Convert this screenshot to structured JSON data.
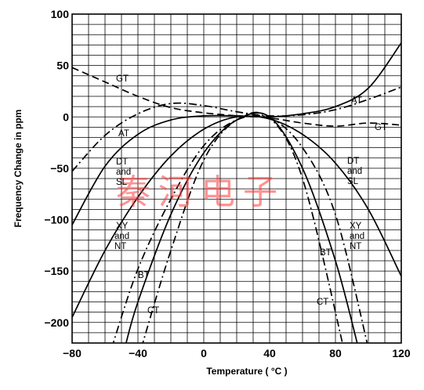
{
  "chart_data": {
    "type": "line",
    "xlabel": "Temperature ( °C )",
    "ylabel": "Frequency Change in ppm",
    "xlim": [
      -80,
      120
    ],
    "ylim": [
      -220,
      100
    ],
    "x_ticks": [
      "−80",
      "−40",
      "0",
      "40",
      "80",
      "120"
    ],
    "y_ticks": [
      "100",
      "50",
      "0",
      "−50",
      "−100",
      "−150",
      "−200"
    ],
    "grid": true,
    "watermark": "秦河电子",
    "series": [
      {
        "name": "AT",
        "style": "solid",
        "x": [
          -80,
          -60,
          -40,
          -20,
          0,
          20,
          40,
          60,
          80,
          100,
          120
        ],
        "y": [
          -105,
          -48,
          -17,
          -3,
          1,
          1,
          0,
          3,
          10,
          28,
          72
        ]
      },
      {
        "name": "AT",
        "style": "dashdot",
        "x": [
          -80,
          -60,
          -40,
          -20,
          0,
          20,
          40,
          60,
          80,
          100,
          120
        ],
        "y": [
          -53,
          -18,
          3,
          13,
          11,
          5,
          1,
          2,
          7,
          17,
          29
        ]
      },
      {
        "name": "GT",
        "style": "dashed",
        "x": [
          -80,
          -60,
          -40,
          -20,
          0,
          20,
          40,
          60,
          80,
          100,
          120
        ],
        "y": [
          48,
          34,
          20,
          9,
          4,
          1,
          -1,
          -6,
          -9,
          -6,
          -8
        ]
      },
      {
        "name": "DT and SL",
        "style": "solid",
        "x": [
          -80,
          -60,
          -40,
          -20,
          0,
          20,
          40,
          60,
          80,
          100,
          120
        ],
        "y": [
          -195,
          -130,
          -78,
          -38,
          -12,
          0,
          -2,
          -17,
          -45,
          -90,
          -155
        ]
      },
      {
        "name": "XY and NT",
        "style": "dashdot",
        "x": [
          -56,
          -40,
          -20,
          0,
          20,
          40,
          60,
          80,
          100
        ],
        "y": [
          -225,
          -148,
          -80,
          -28,
          -3,
          -1,
          -30,
          -95,
          -225
        ]
      },
      {
        "name": "BT",
        "style": "solid",
        "x": [
          -48,
          -40,
          -20,
          0,
          20,
          40,
          60,
          80,
          94
        ],
        "y": [
          -225,
          -180,
          -95,
          -35,
          -3,
          0,
          -50,
          -140,
          -225
        ]
      },
      {
        "name": "CT",
        "style": "dashdot",
        "x": [
          -38,
          -20,
          0,
          20,
          40,
          60,
          85
        ],
        "y": [
          -225,
          -130,
          -42,
          -3,
          -1,
          -60,
          -225
        ]
      }
    ],
    "labels": [
      "GT",
      "AT",
      "DT",
      "and",
      "SL",
      "XY",
      "and",
      "NT",
      "BT",
      "CT",
      "AT",
      "GT",
      "DT",
      "and",
      "SL",
      "XY",
      "and",
      "NT",
      "BT",
      "CT"
    ]
  }
}
